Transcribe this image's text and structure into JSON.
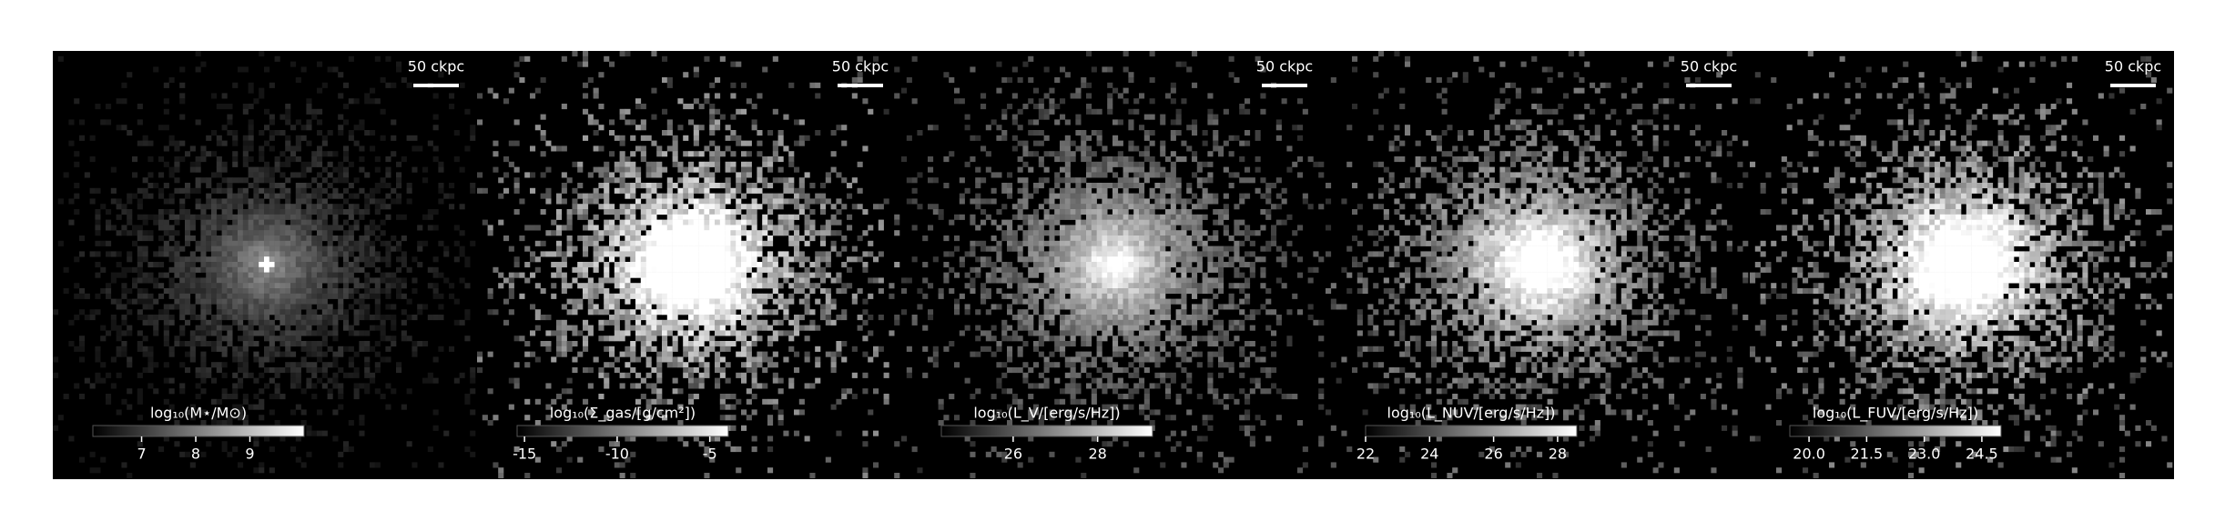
{
  "chart_data": [
    {
      "type": "image",
      "scalebar_label": "50 ckpc",
      "colorbar_label": "log₁₀(M⋆/M⊙)",
      "clim": [
        6.1,
        10.0
      ],
      "colorbar_ticks": [
        7,
        8,
        9
      ],
      "cmap": [
        "#000000",
        "#ffffff"
      ]
    },
    {
      "type": "image",
      "scalebar_label": "50 ckpc",
      "colorbar_label": "log₁₀(Σ_gas/[g/cm²])",
      "clim": [
        -15.4,
        -4.0
      ],
      "colorbar_ticks": [
        -15,
        -10,
        -5
      ],
      "cmap": [
        "#000000",
        "#ffffff"
      ]
    },
    {
      "type": "image",
      "scalebar_label": "50 ckpc",
      "colorbar_label": "log₁₀(L_V/[erg/s/Hz])",
      "clim": [
        24.3,
        29.3
      ],
      "colorbar_ticks": [
        26,
        28
      ],
      "cmap": [
        "#000000",
        "#ffffff"
      ]
    },
    {
      "type": "image",
      "scalebar_label": "50 ckpc",
      "colorbar_label": "log₁₀(L_NUV/[erg/s/Hz])",
      "clim": [
        22.0,
        28.6
      ],
      "colorbar_ticks": [
        22,
        24,
        26,
        28
      ],
      "cmap": [
        "#000000",
        "#ffffff"
      ]
    },
    {
      "type": "image",
      "scalebar_label": "50 ckpc",
      "colorbar_label": "log₁₀(L_FUV/[erg/s/Hz])",
      "clim": [
        19.5,
        25.0
      ],
      "colorbar_ticks": [
        {
          "value": 20,
          "label": "20.0"
        },
        21.5,
        {
          "value": 23,
          "label": "23.0"
        },
        24.5
      ],
      "cmap": [
        "#000000",
        "#ffffff"
      ]
    }
  ]
}
